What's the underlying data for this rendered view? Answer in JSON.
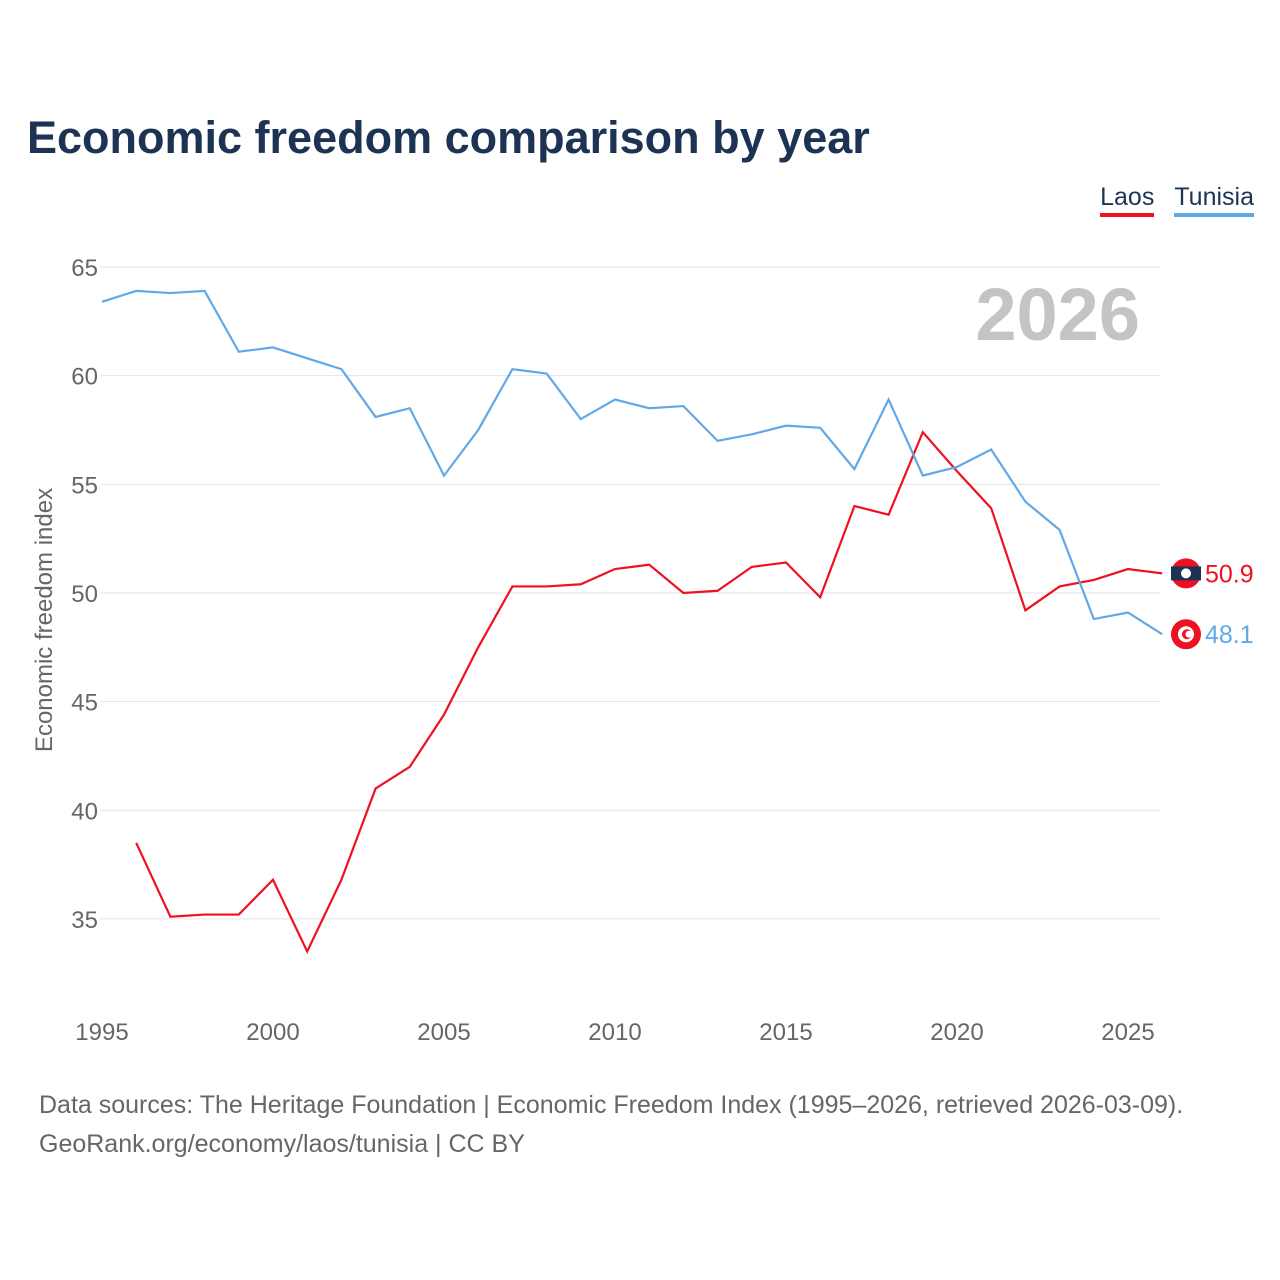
{
  "chart_data": {
    "type": "line",
    "title": "Economic freedom comparison by year",
    "ylabel": "Economic freedom index",
    "xlabel": "",
    "xlim": [
      1995,
      2026
    ],
    "ylim": [
      31,
      65.3
    ],
    "xticks": [
      1995,
      2000,
      2005,
      2010,
      2015,
      2020,
      2025
    ],
    "yticks": [
      35,
      40,
      45,
      50,
      55,
      60,
      65
    ],
    "grid": true,
    "legend_position": "top-right",
    "watermark_year": "2026",
    "series": [
      {
        "name": "Laos",
        "color": "#ee1122",
        "start": 1996,
        "end_label": "50.9",
        "values": [
          38.5,
          35.1,
          35.2,
          35.2,
          36.8,
          33.5,
          36.8,
          41.0,
          42.0,
          44.4,
          47.5,
          50.3,
          50.3,
          50.4,
          51.1,
          51.3,
          50.0,
          50.1,
          51.2,
          51.4,
          49.8,
          54.0,
          53.6,
          57.4,
          55.6,
          53.9,
          49.2,
          50.3,
          50.6,
          51.1,
          50.9
        ]
      },
      {
        "name": "Tunisia",
        "color": "#60a8e8",
        "start": 1995,
        "end_label": "48.1",
        "values": [
          63.4,
          63.9,
          63.8,
          63.9,
          61.1,
          61.3,
          60.8,
          60.3,
          58.1,
          58.5,
          55.4,
          57.5,
          60.3,
          60.1,
          58.0,
          58.9,
          58.5,
          58.6,
          57.0,
          57.3,
          57.7,
          57.6,
          55.7,
          58.9,
          55.4,
          55.8,
          56.6,
          54.2,
          52.9,
          48.8,
          49.1,
          48.1
        ]
      }
    ]
  },
  "source_line1": "Data sources: The Heritage Foundation | Economic Freedom Index (1995–2026, retrieved 2026-03-09).",
  "source_line2": "GeoRank.org/economy/laos/tunisia | CC BY"
}
